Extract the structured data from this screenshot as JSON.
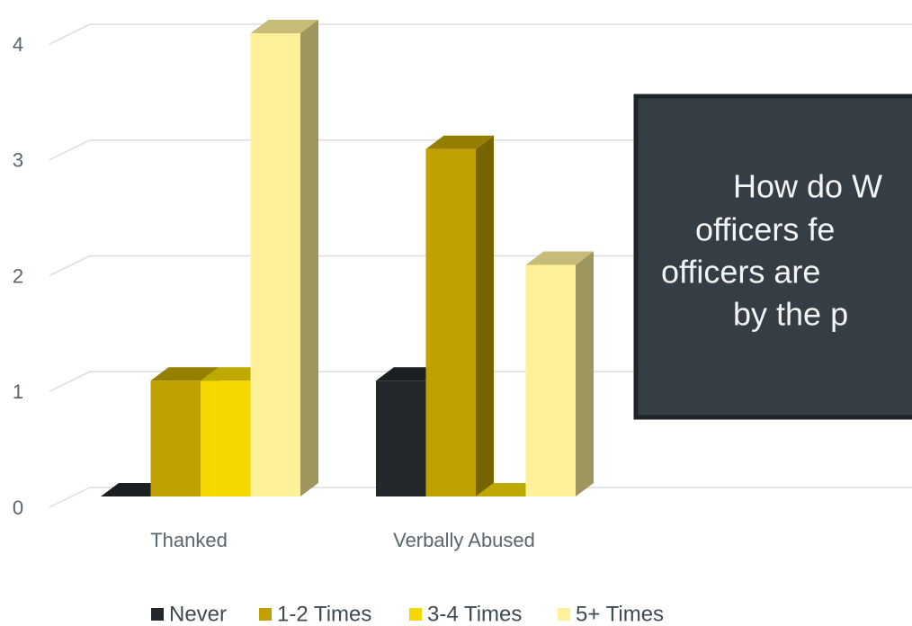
{
  "chart_data": {
    "type": "bar3d",
    "categories": [
      "Thanked",
      "Verbally Abused"
    ],
    "series": [
      {
        "name": "Never",
        "color": "#22282b",
        "values": [
          0,
          1
        ]
      },
      {
        "name": "1-2 Times",
        "color": "#bfa100",
        "values": [
          1,
          3
        ]
      },
      {
        "name": "3-4 Times",
        "color": "#f5d800",
        "values": [
          1,
          0
        ]
      },
      {
        "name": "5+ Times",
        "color": "#fff09a",
        "values": [
          4,
          2
        ]
      }
    ],
    "ylim": [
      0,
      4
    ],
    "yticks": [
      0,
      1,
      2,
      3,
      4
    ],
    "grid": true,
    "legend": "bottom",
    "annotation": {
      "lines": [
        "How do W",
        "officers fe",
        "officers are",
        "by the p"
      ]
    }
  }
}
